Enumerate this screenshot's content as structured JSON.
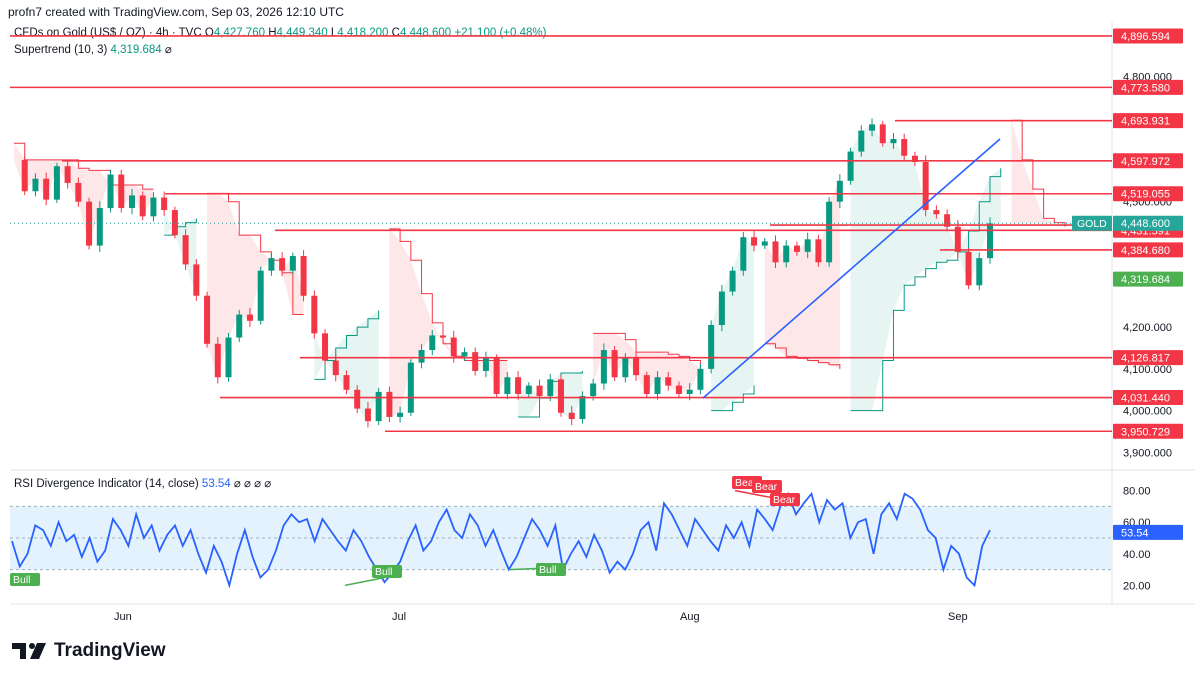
{
  "header": {
    "created_by": "profn7 created with TradingView.com, Sep 03, 2026 12:10 UTC"
  },
  "legend": {
    "symbol_line": "CFDs on Gold (US$ / OZ) · 4h · TVC",
    "o_label": "O",
    "o_value": "4,427.760",
    "h_label": "H",
    "h_value": "4,449.340",
    "l_label": "L",
    "l_value": "4,418.200",
    "c_label": "C",
    "c_value": "4,448.600",
    "change": "+21.100 (+0.48%)",
    "supertrend_label": "Supertrend (10, 3)",
    "supertrend_value": "4,319.684",
    "supertrend_icon": "⌀"
  },
  "rsi_legend": {
    "label": "RSI Divergence Indicator (14, close)",
    "value": "53.54",
    "icons": "⌀ ⌀ ⌀ ⌀"
  },
  "footer": {
    "brand": "TradingView"
  },
  "colors": {
    "level_line": "#f23645",
    "supertrend_up": "#089981",
    "supertrend_down": "#f23645",
    "trendline": "#2962ff",
    "rsi_line": "#2962ff",
    "rsi_band": "#e3f2fd",
    "price_tag_green": "#26a69a"
  },
  "chart_data": [
    {
      "type": "candlestick",
      "title": "CFDs on Gold (US$ / OZ) · 4h · TVC",
      "x_tick_labels": [
        "Jun",
        "Jul",
        "Aug",
        "Sep"
      ],
      "y_tick_labels": [
        "4,800.000",
        "4,500.000",
        "4,200.000",
        "4,100.000",
        "4,000.000",
        "3,900.000"
      ],
      "ylim": [
        3870,
        4930
      ],
      "price_path": [
        4600,
        4525,
        4555,
        4505,
        4585,
        4545,
        4500,
        4395,
        4485,
        4565,
        4485,
        4515,
        4465,
        4510,
        4480,
        4420,
        4350,
        4275,
        4160,
        4080,
        4175,
        4230,
        4215,
        4335,
        4365,
        4335,
        4370,
        4275,
        4185,
        4120,
        4085,
        4050,
        4005,
        3975,
        4045,
        3985,
        3995,
        4115,
        4145,
        4180,
        4175,
        4130,
        4140,
        4095,
        4125,
        4040,
        4080,
        4040,
        4060,
        4035,
        4075,
        3995,
        3980,
        4035,
        4065,
        4145,
        4080,
        4125,
        4085,
        4040,
        4080,
        4060,
        4040,
        4050,
        4100,
        4205,
        4285,
        4335,
        4415,
        4395,
        4405,
        4355,
        4395,
        4380,
        4410,
        4355,
        4500,
        4550,
        4620,
        4670,
        4685,
        4640,
        4650,
        4610,
        4595,
        4480,
        4470,
        4440,
        4380,
        4300,
        4365,
        4448
      ],
      "supertrend_segments": [
        {
          "trend": "down",
          "values": [
            4640,
            4600,
            4600,
            4600,
            4600,
            4600,
            4580,
            4575,
            4575,
            4540,
            4540,
            4540,
            4530,
            4530
          ]
        },
        {
          "trend": "up",
          "values": [
            4420,
            4440,
            4450,
            4460
          ]
        },
        {
          "trend": "down",
          "values": [
            4520,
            4520,
            4500,
            4420,
            4420,
            4380,
            4360,
            4330,
            4230,
            4230
          ]
        },
        {
          "trend": "up",
          "values": [
            4075,
            4120,
            4150,
            4180,
            4200,
            4220,
            4240
          ]
        },
        {
          "trend": "down",
          "values": [
            4435,
            4405,
            4360,
            4280,
            4210,
            4160,
            4130,
            4120,
            4120,
            4120,
            4120,
            4120
          ]
        },
        {
          "trend": "up",
          "values": [
            3985,
            3985,
            4030,
            4070,
            4090,
            4090,
            4095
          ]
        },
        {
          "trend": "down",
          "values": [
            4185,
            4185,
            4185,
            4170,
            4140,
            4140,
            4140,
            4135,
            4130,
            4120,
            4100
          ]
        },
        {
          "trend": "up",
          "values": [
            4000,
            4000,
            4020,
            4040,
            4060
          ]
        },
        {
          "trend": "down",
          "values": [
            4160,
            4150,
            4130,
            4125,
            4120,
            4115,
            4110,
            4100
          ]
        },
        {
          "trend": "up",
          "values": [
            4000,
            4000,
            4000,
            4120,
            4240,
            4300,
            4320,
            4340,
            4355,
            4360,
            4380,
            4430,
            4500,
            4560,
            4580
          ]
        },
        {
          "trend": "down",
          "values": [
            4695,
            4600,
            4530,
            4460,
            4450,
            4440
          ]
        },
        {
          "trend": "up",
          "values": [
            4320
          ]
        }
      ],
      "horizontal_levels": [
        {
          "label": "4,896.594",
          "value": 4896.594
        },
        {
          "label": "4,773.580",
          "value": 4773.58
        },
        {
          "label": "4,693.931",
          "value": 4693.931
        },
        {
          "label": "4,597.972",
          "value": 4597.972
        },
        {
          "label": "4,519.055",
          "value": 4519.055
        },
        {
          "label": "4,444.037",
          "value": 4444.037
        },
        {
          "label": "4,431.591",
          "value": 4431.591
        },
        {
          "label": "4,384.680",
          "value": 4384.68
        },
        {
          "label": "4,126.817",
          "value": 4126.817
        },
        {
          "label": "4,031.440",
          "value": 4031.44
        },
        {
          "label": "3,950.729",
          "value": 3950.729
        }
      ],
      "last_price": {
        "symbol": "GOLD",
        "label": "4,448.600",
        "value": 4448.6
      },
      "supertrend_last": {
        "label": "4,319.684",
        "value": 4319.684
      },
      "trendline": [
        {
          "x": "Aug",
          "y": 4030
        },
        {
          "x": "Sep",
          "y": 4650
        }
      ]
    },
    {
      "type": "line",
      "title": "RSI Divergence Indicator (14, close)",
      "y_tick_labels": [
        "80.00",
        "60.00",
        "40.00",
        "20.00"
      ],
      "ylim": [
        12,
        88
      ],
      "band": [
        30,
        70
      ],
      "midline": 50,
      "last_value": "53.54",
      "values": [
        48,
        32,
        40,
        58,
        55,
        45,
        60,
        48,
        52,
        38,
        50,
        35,
        42,
        62,
        55,
        45,
        65,
        50,
        58,
        42,
        52,
        58,
        45,
        55,
        40,
        28,
        45,
        35,
        20,
        40,
        55,
        38,
        25,
        30,
        42,
        58,
        65,
        60,
        62,
        48,
        62,
        55,
        48,
        42,
        55,
        48,
        38,
        30,
        22,
        28,
        35,
        48,
        58,
        42,
        48,
        60,
        68,
        55,
        50,
        65,
        58,
        45,
        55,
        42,
        30,
        38,
        50,
        62,
        55,
        45,
        58,
        30,
        40,
        48,
        38,
        52,
        42,
        28,
        35,
        30,
        40,
        55,
        60,
        42,
        72,
        65,
        55,
        45,
        62,
        55,
        48,
        42,
        58,
        50,
        60,
        45,
        68,
        62,
        55,
        70,
        78,
        65,
        72,
        78,
        60,
        74,
        68,
        72,
        50,
        60,
        62,
        40,
        65,
        72,
        62,
        78,
        75,
        68,
        55,
        50,
        30,
        45,
        40,
        25,
        20,
        45,
        55
      ],
      "signals": [
        {
          "label": "Bull",
          "type": "bull"
        },
        {
          "label": "Bull",
          "type": "bull"
        },
        {
          "label": "Bull",
          "type": "bull"
        },
        {
          "label": "Bear",
          "type": "bear"
        },
        {
          "label": "Bear",
          "type": "bear"
        },
        {
          "label": "Bear",
          "type": "bear"
        }
      ]
    }
  ]
}
